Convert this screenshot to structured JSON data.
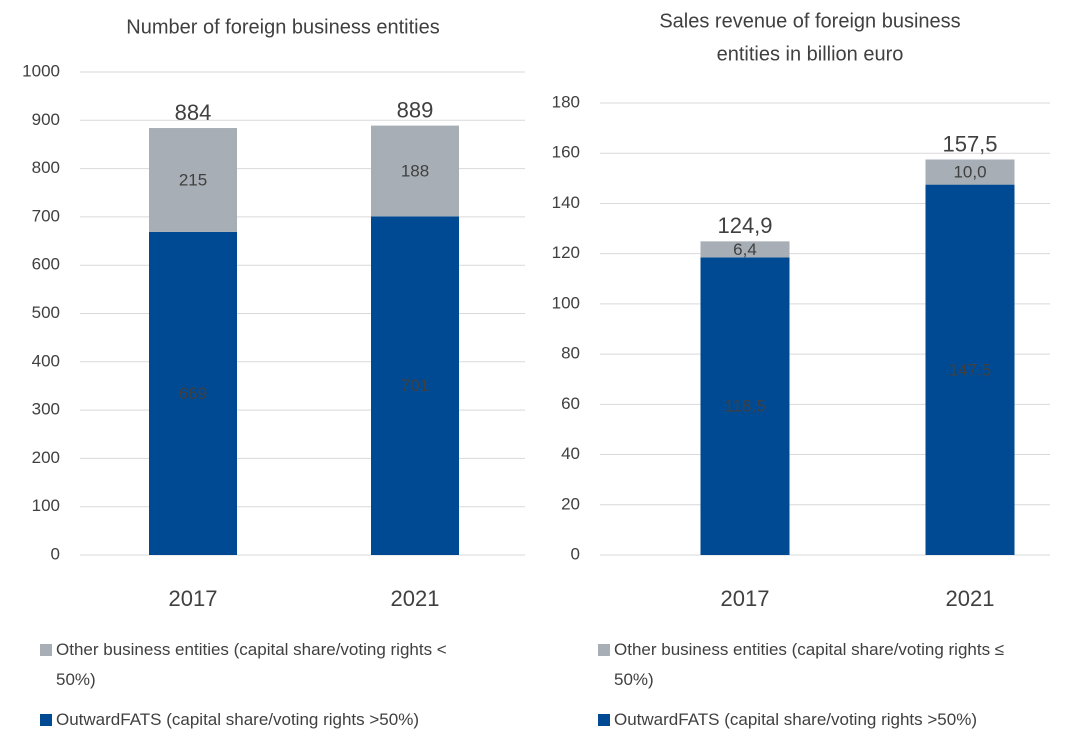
{
  "chart_data": [
    {
      "type": "stacked-bar",
      "title": "Number of foreign business entities",
      "categories": [
        "2017",
        "2021"
      ],
      "series": [
        {
          "name": "Other business entities (capital share/voting rights < 50%)",
          "color": "#a7aeb5",
          "values": [
            215,
            188
          ]
        },
        {
          "name": "OutwardFATS (capital share/voting rights >50%)",
          "color": "#004a93",
          "values": [
            669,
            701
          ]
        }
      ],
      "totals": [
        884,
        889
      ],
      "ylim": [
        0,
        1000
      ],
      "yticks": [
        0,
        100,
        200,
        300,
        400,
        500,
        600,
        700,
        800,
        900,
        1000
      ],
      "grid": true
    },
    {
      "type": "stacked-bar",
      "title": [
        "Sales revenue of foreign business",
        "entities in billion euro"
      ],
      "categories": [
        "2017",
        "2021"
      ],
      "series": [
        {
          "name": "Other business entities (capital share/voting rights ≤ 50%)",
          "color": "#a7aeb5",
          "values": [
            6.4,
            10.0
          ],
          "value_labels": [
            "6,4",
            "10,0"
          ]
        },
        {
          "name": "OutwardFATS (capital share/voting rights >50%)",
          "color": "#004a93",
          "values": [
            118.5,
            147.5
          ],
          "value_labels": [
            "118,5",
            "147,5"
          ]
        }
      ],
      "totals": [
        124.9,
        157.5
      ],
      "total_labels": [
        "124,9",
        "157,5"
      ],
      "ylim": [
        0,
        180
      ],
      "yticks": [
        0,
        20,
        40,
        60,
        80,
        100,
        120,
        140,
        160,
        180
      ],
      "grid": true
    }
  ]
}
